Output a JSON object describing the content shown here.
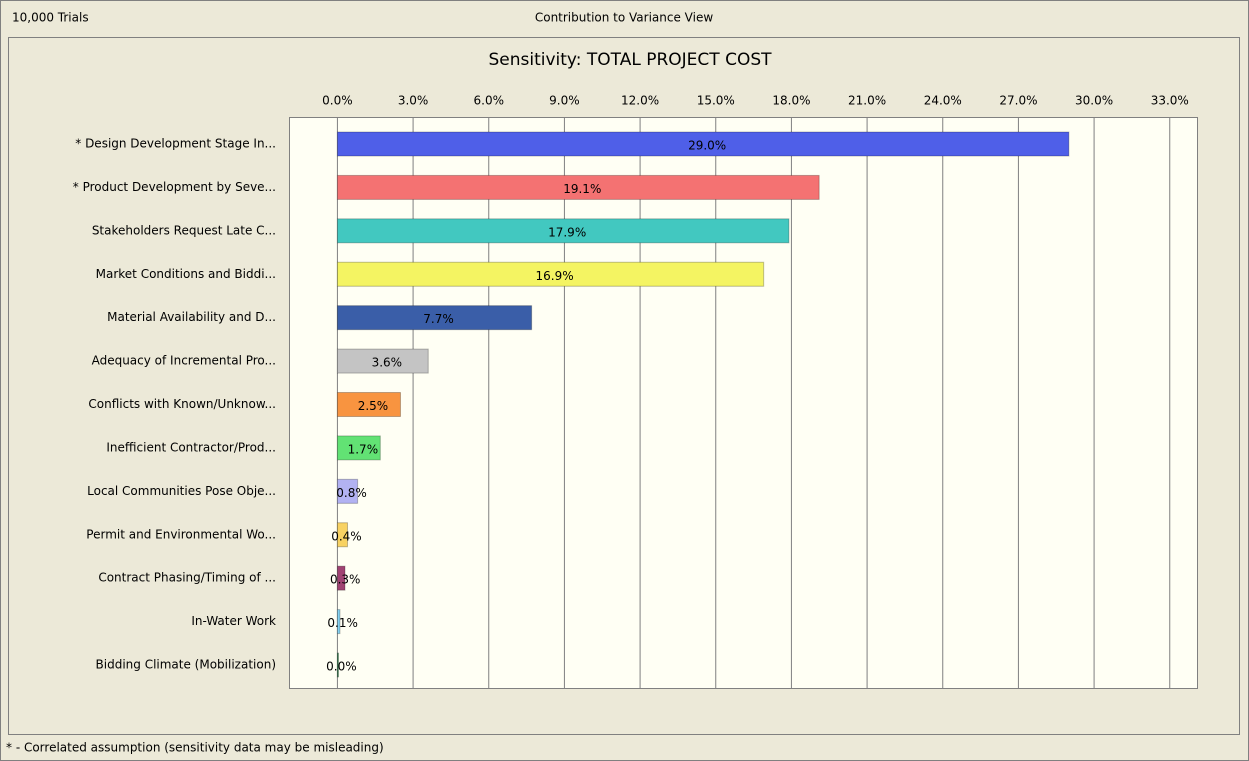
{
  "header": {
    "trials": "10,000 Trials",
    "view": "Contribution to Variance View"
  },
  "chart_data": {
    "type": "bar",
    "orientation": "horizontal",
    "title": "Sensitivity: TOTAL PROJECT COST",
    "categories": [
      "* Design Development Stage In...",
      "* Product Development by Seve...",
      "Stakeholders Request Late C...",
      "Market Conditions and Biddi...",
      "Material Availability and D...",
      "Adequacy of Incremental Pro...",
      "Conflicts with Known/Unknow...",
      "Inefficient Contractor/Prod...",
      "Local Communities Pose Obje...",
      "Permit and Environmental Wo...",
      "Contract Phasing/Timing of ...",
      "In-Water Work",
      "Bidding Climate (Mobilization)"
    ],
    "values": [
      29.0,
      19.1,
      17.9,
      16.9,
      7.7,
      3.6,
      2.5,
      1.7,
      0.8,
      0.4,
      0.3,
      0.1,
      0.0
    ],
    "value_labels": [
      "29.0%",
      "19.1%",
      "17.9%",
      "16.9%",
      "7.7%",
      "3.6%",
      "2.5%",
      "1.7%",
      "0.8%",
      "0.4%",
      "0.3%",
      "0.1%",
      "0.0%"
    ],
    "colors": [
      "#4f5fe8",
      "#f47272",
      "#42c8c0",
      "#f4f462",
      "#3a5ea8",
      "#c4c4c4",
      "#f89440",
      "#62e274",
      "#b2b2f2",
      "#f8d262",
      "#a04272",
      "#84d2f2",
      "#228244"
    ],
    "xlim": [
      -1.9,
      34.1
    ],
    "xticks": [
      {
        "value": 0,
        "label": "0.0%"
      },
      {
        "value": 3,
        "label": "3.0%"
      },
      {
        "value": 6,
        "label": "6.0%"
      },
      {
        "value": 9,
        "label": "9.0%"
      },
      {
        "value": 12,
        "label": "12.0%"
      },
      {
        "value": 15,
        "label": "15.0%"
      },
      {
        "value": 18,
        "label": "18.0%"
      },
      {
        "value": 21,
        "label": "21.0%"
      },
      {
        "value": 24,
        "label": "24.0%"
      },
      {
        "value": 27,
        "label": "27.0%"
      },
      {
        "value": 30,
        "label": "30.0%"
      },
      {
        "value": 33,
        "label": "33.0%"
      }
    ],
    "grid": true
  },
  "footnote": "* - Correlated assumption (sensitivity data may be misleading)"
}
